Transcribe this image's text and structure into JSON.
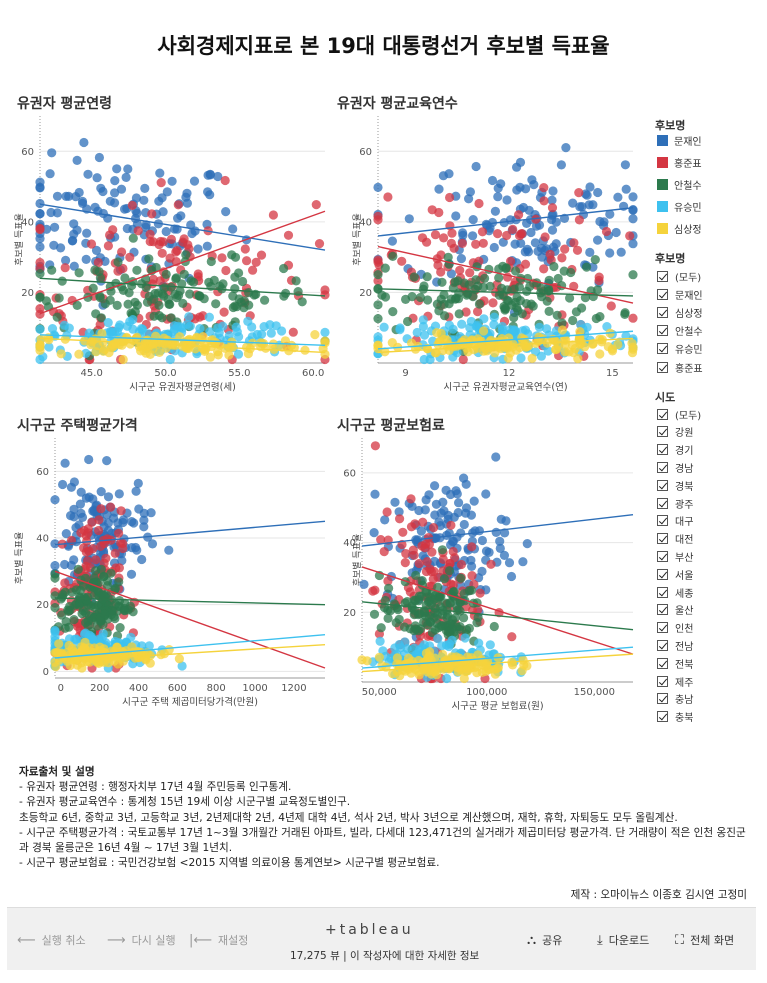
{
  "page": {
    "title": "사회경제지표로 본 19대 대통령선거 후보별 득표율"
  },
  "colors": {
    "문재인": "#2e6fb8",
    "홍준표": "#d43642",
    "안철수": "#2c7a4d",
    "유승민": "#3ec1ef",
    "심상정": "#f5d33c"
  },
  "chart_data": [
    {
      "type": "scatter",
      "title": "유권자 평균연령",
      "xlabel": "시구군 유권자평균연령(세)",
      "ylabel": "후보별 득표율",
      "xlim": [
        41.5,
        60.8
      ],
      "ylim": [
        0,
        70
      ],
      "xticks": [
        "45.0",
        "50.0",
        "55.0",
        "60.0"
      ],
      "yticks": [
        "20",
        "40",
        "60"
      ],
      "series_summary": [
        {
          "name": "문재인",
          "center": [
            47,
            40
          ],
          "spread": [
            4,
            9
          ],
          "trend": [
            [
              41.5,
              45
            ],
            [
              60.8,
              32
            ]
          ]
        },
        {
          "name": "홍준표",
          "center": [
            50,
            24
          ],
          "spread": [
            5,
            12
          ],
          "trend": [
            [
              41.5,
              14
            ],
            [
              60.8,
              43
            ]
          ]
        },
        {
          "name": "안철수",
          "center": [
            50,
            19
          ],
          "spread": [
            5,
            5
          ],
          "trend": [
            [
              41.5,
              24
            ],
            [
              60.8,
              19
            ]
          ]
        },
        {
          "name": "유승민",
          "center": [
            50,
            7
          ],
          "spread": [
            5,
            2.5
          ],
          "trend": [
            [
              41.5,
              8
            ],
            [
              60.8,
              5
            ]
          ]
        },
        {
          "name": "심상정",
          "center": [
            50,
            5
          ],
          "spread": [
            5,
            1.5
          ],
          "trend": [
            [
              41.5,
              7
            ],
            [
              60.8,
              3
            ]
          ]
        }
      ]
    },
    {
      "type": "scatter",
      "title": "유권자 평균교육연수",
      "xlabel": "시구군 유권자평균교육연수(연)",
      "ylabel": "후보별 득표율",
      "xlim": [
        8.2,
        15.6
      ],
      "ylim": [
        0,
        70
      ],
      "xticks": [
        "9",
        "12",
        "15"
      ],
      "yticks": [
        "20",
        "40",
        "60"
      ],
      "series_summary": [
        {
          "name": "문재인",
          "center": [
            12.5,
            40
          ],
          "spread": [
            1.8,
            9
          ],
          "trend": [
            [
              8.2,
              36
            ],
            [
              15.6,
              44
            ]
          ]
        },
        {
          "name": "홍준표",
          "center": [
            11.5,
            24
          ],
          "spread": [
            1.8,
            12
          ],
          "trend": [
            [
              8.2,
              33
            ],
            [
              15.6,
              17
            ]
          ]
        },
        {
          "name": "안철수",
          "center": [
            11.5,
            19
          ],
          "spread": [
            1.8,
            5
          ],
          "trend": [
            [
              8.2,
              21
            ],
            [
              15.6,
              19
            ]
          ]
        },
        {
          "name": "유승민",
          "center": [
            12,
            7
          ],
          "spread": [
            1.8,
            2.5
          ],
          "trend": [
            [
              8.2,
              4
            ],
            [
              15.6,
              9
            ]
          ]
        },
        {
          "name": "심상정",
          "center": [
            12,
            5
          ],
          "spread": [
            1.8,
            1.5
          ],
          "trend": [
            [
              8.2,
              3
            ],
            [
              15.6,
              7
            ]
          ]
        }
      ]
    },
    {
      "type": "scatter",
      "title": "시구군 주택평균가격",
      "xlabel": "시구군 주택 제곱미터당가격(만원)",
      "ylabel": "후보별 득표율",
      "xlim": [
        -30,
        1360
      ],
      "ylim": [
        -2,
        70
      ],
      "xticks": [
        "0",
        "200",
        "400",
        "600",
        "800",
        "1000",
        "1200"
      ],
      "yticks": [
        "0",
        "20",
        "40",
        "60"
      ],
      "series_summary": [
        {
          "name": "문재인",
          "center": [
            200,
            40
          ],
          "spread": [
            120,
            9
          ],
          "trend": [
            [
              -30,
              38
            ],
            [
              1360,
              45
            ]
          ]
        },
        {
          "name": "홍준표",
          "center": [
            150,
            24
          ],
          "spread": [
            80,
            12
          ],
          "trend": [
            [
              -30,
              30
            ],
            [
              1360,
              1
            ]
          ]
        },
        {
          "name": "안철수",
          "center": [
            170,
            20
          ],
          "spread": [
            90,
            5
          ],
          "trend": [
            [
              -30,
              22
            ],
            [
              1360,
              20
            ]
          ]
        },
        {
          "name": "유승민",
          "center": [
            200,
            7
          ],
          "spread": [
            150,
            2.5
          ],
          "trend": [
            [
              -30,
              4
            ],
            [
              1360,
              11
            ]
          ]
        },
        {
          "name": "심상정",
          "center": [
            200,
            5
          ],
          "spread": [
            150,
            1.5
          ],
          "trend": [
            [
              -30,
              3
            ],
            [
              1360,
              8
            ]
          ]
        }
      ]
    },
    {
      "type": "scatter",
      "title": "시구군 평균보험료",
      "xlabel": "시구군 평균 보험료(원)",
      "ylabel": "후보별 득표율",
      "xlim": [
        42000,
        168000
      ],
      "ylim": [
        0,
        70
      ],
      "xticks": [
        "50,000",
        "100,000",
        "150,000"
      ],
      "yticks": [
        "20",
        "40",
        "60"
      ],
      "series_summary": [
        {
          "name": "문재인",
          "center": [
            82000,
            40
          ],
          "spread": [
            14000,
            9
          ],
          "trend": [
            [
              42000,
              39
            ],
            [
              168000,
              48
            ]
          ]
        },
        {
          "name": "홍준표",
          "center": [
            72000,
            25
          ],
          "spread": [
            12000,
            12
          ],
          "trend": [
            [
              42000,
              33
            ],
            [
              168000,
              8
            ]
          ]
        },
        {
          "name": "안철수",
          "center": [
            75000,
            20
          ],
          "spread": [
            12000,
            5
          ],
          "trend": [
            [
              42000,
              23
            ],
            [
              168000,
              15
            ]
          ]
        },
        {
          "name": "유승민",
          "center": [
            80000,
            7
          ],
          "spread": [
            15000,
            2.5
          ],
          "trend": [
            [
              42000,
              4
            ],
            [
              168000,
              10
            ]
          ]
        },
        {
          "name": "심상정",
          "center": [
            80000,
            5
          ],
          "spread": [
            15000,
            1.5
          ],
          "trend": [
            [
              42000,
              3
            ],
            [
              168000,
              8
            ]
          ]
        }
      ]
    }
  ],
  "legend": {
    "title": "후보명",
    "items": [
      {
        "name": "문재인",
        "color": "#2e6fb8"
      },
      {
        "name": "홍준표",
        "color": "#d43642"
      },
      {
        "name": "안철수",
        "color": "#2c7a4d"
      },
      {
        "name": "유승민",
        "color": "#3ec1ef"
      },
      {
        "name": "심상정",
        "color": "#f5d33c"
      }
    ]
  },
  "candidate_filter": {
    "title": "후보명",
    "options": [
      "(모두)",
      "문재인",
      "심상정",
      "안철수",
      "유승민",
      "홍준표"
    ]
  },
  "region_filter": {
    "title": "시도",
    "options": [
      "(모두)",
      "강원",
      "경기",
      "경남",
      "경북",
      "광주",
      "대구",
      "대전",
      "부산",
      "서울",
      "세종",
      "울산",
      "인천",
      "전남",
      "전북",
      "제주",
      "충남",
      "충북"
    ]
  },
  "notes": {
    "title": "자료출처 및 설명",
    "lines": [
      "- 유권자 평균연령 : 행정자치부 17년 4월 주민등록 인구통계.",
      "- 유권자 평균교육연수 : 통계청 15년 19세 이상 시군구별 교육정도별인구.",
      "초등학교 6년, 중학교 3년, 고등학교 3년, 2년제대학 2년, 4년제 대학 4년, 석사 2년, 박사 3년으로 계산했으며, 재학, 휴학, 자퇴등도 모두 올림계산.",
      "- 시구군 주택평균가격 : 국토교통부 17년 1~3월 3개월간 거래된 아파트, 빌라, 다세대 123,471건의 실거래가 제곱미터당 평균가격. 단 거래량이 적은 인천 옹진군과 경북 울릉군은 16년 4월 ~ 17년 3월 1년치.",
      "- 시군구 평균보험료 : 국민건강보험 <2015 지역별 의료이용 통계연보> 시군구별 평균보험료."
    ],
    "credit": "제작 : 오마이뉴스 이종호 김시연 고정미"
  },
  "toolbar": {
    "undo": "실행 취소",
    "redo": "다시 실행",
    "reset": "재설정",
    "logo": "+tableau",
    "views": "17,275 뷰 | 이 작성자에 대한 자세한 정보",
    "share": "공유",
    "download": "다운로드",
    "fullscreen": "전체 화면"
  }
}
